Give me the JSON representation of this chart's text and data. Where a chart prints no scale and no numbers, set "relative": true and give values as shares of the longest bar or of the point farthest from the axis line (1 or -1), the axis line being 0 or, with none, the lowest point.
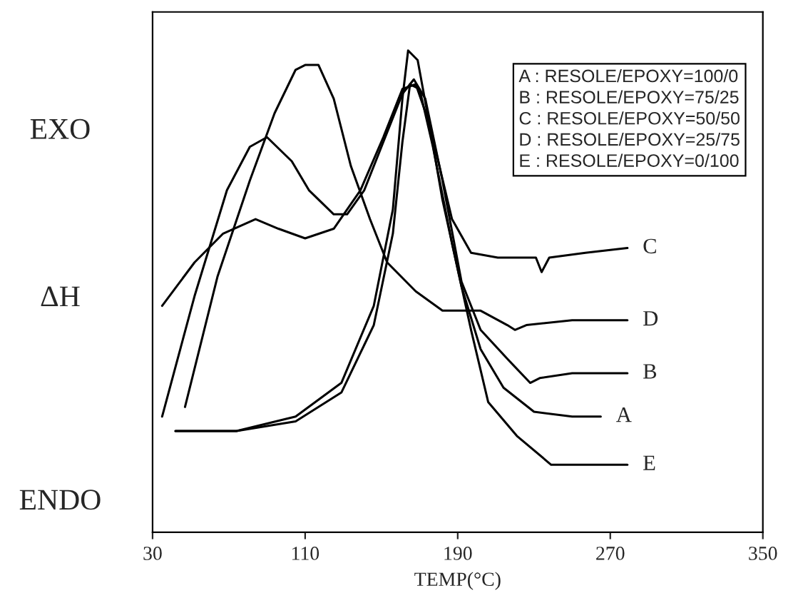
{
  "chart_data": {
    "type": "line",
    "relative": true,
    "xlabel": "TEMP(°C)",
    "ylabel": "ΔH",
    "xlim": [
      30,
      350
    ],
    "xticks": [
      30,
      110,
      190,
      270,
      350
    ],
    "grid": false,
    "marker": "none",
    "line_style": "solid",
    "annotations": [
      "EXO",
      "ENDO",
      "A : RESOLE/EPOXY=100/0",
      "B : RESOLE/EPOXY=75/25",
      "C : RESOLE/EPOXY=50/50",
      "D : RESOLE/EPOXY=25/75",
      "E : RESOLE/EPOXY=0/100"
    ],
    "series": [
      {
        "name": "A",
        "color": "#000000",
        "x": [
          42,
          74,
          105,
          129,
          146,
          156,
          161,
          164,
          169,
          175,
          182,
          192,
          202,
          214,
          230,
          250,
          265
        ],
        "values": [
          0.21,
          0.21,
          0.24,
          0.31,
          0.47,
          0.67,
          0.9,
          1.0,
          0.98,
          0.85,
          0.69,
          0.51,
          0.38,
          0.3,
          0.25,
          0.24,
          0.24
        ]
      },
      {
        "name": "B",
        "color": "#000000",
        "x": [
          35,
          52,
          69,
          81,
          90,
          103,
          112,
          125,
          132,
          141,
          151,
          161,
          167,
          173,
          182,
          192,
          202,
          216,
          228,
          233,
          250,
          279
        ],
        "values": [
          0.24,
          0.49,
          0.71,
          0.8,
          0.82,
          0.77,
          0.71,
          0.66,
          0.66,
          0.71,
          0.81,
          0.91,
          0.94,
          0.9,
          0.73,
          0.52,
          0.42,
          0.36,
          0.31,
          0.32,
          0.33,
          0.33
        ]
      },
      {
        "name": "C",
        "color": "#000000",
        "x": [
          35,
          52,
          67,
          84,
          96,
          110,
          125,
          139,
          151,
          161,
          168,
          175,
          187,
          197,
          211,
          231,
          234,
          238,
          257,
          279
        ],
        "values": [
          0.47,
          0.56,
          0.62,
          0.65,
          0.63,
          0.61,
          0.63,
          0.71,
          0.82,
          0.92,
          0.93,
          0.85,
          0.65,
          0.58,
          0.57,
          0.57,
          0.54,
          0.57,
          0.58,
          0.59
        ]
      },
      {
        "name": "D",
        "color": "#000000",
        "x": [
          47,
          64,
          81,
          94,
          105,
          110,
          117,
          125,
          134,
          144,
          153,
          168,
          182,
          202,
          216,
          220,
          226,
          250,
          279
        ],
        "values": [
          0.26,
          0.53,
          0.73,
          0.87,
          0.96,
          0.97,
          0.97,
          0.9,
          0.76,
          0.65,
          0.56,
          0.5,
          0.46,
          0.46,
          0.43,
          0.42,
          0.43,
          0.44,
          0.44
        ]
      },
      {
        "name": "E",
        "color": "#000000",
        "x": [
          42,
          74,
          105,
          129,
          146,
          156,
          161,
          165,
          170,
          177,
          187,
          197,
          206,
          221,
          239,
          242,
          279
        ],
        "values": [
          0.21,
          0.21,
          0.23,
          0.29,
          0.43,
          0.62,
          0.81,
          0.93,
          0.92,
          0.8,
          0.6,
          0.42,
          0.27,
          0.2,
          0.14,
          0.14,
          0.14
        ]
      }
    ]
  }
}
